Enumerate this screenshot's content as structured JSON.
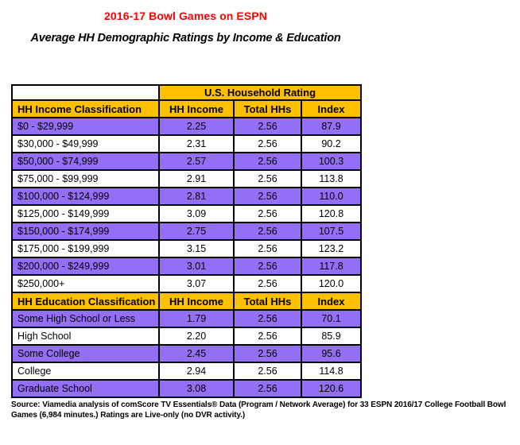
{
  "colors": {
    "title_red": "#FF0000",
    "header_gold": "#FFC000",
    "row_purple": "#946FF5",
    "row_white": "#FFFFFF",
    "border_black": "#000000"
  },
  "chart_data": {
    "type": "table",
    "title": "2016-17 Bowl Games on ESPN",
    "subtitle": "Average HH Demographic Ratings by Income & Education",
    "column_group_header": "U.S. Household Rating",
    "sections": [
      {
        "header": [
          "HH Income Classification",
          "HH Income",
          "Total HHs",
          "Index"
        ],
        "rows": [
          [
            "$0 - $29,999",
            "2.25",
            "2.56",
            "87.9"
          ],
          [
            "$30,000 - $49,999",
            "2.31",
            "2.56",
            "90.2"
          ],
          [
            "$50,000 - $74,999",
            "2.57",
            "2.56",
            "100.3"
          ],
          [
            "$75,000 - $99,999",
            "2.91",
            "2.56",
            "113.8"
          ],
          [
            "$100,000 - $124,999",
            "2.81",
            "2.56",
            "110.0"
          ],
          [
            "$125,000 - $149,999",
            "3.09",
            "2.56",
            "120.8"
          ],
          [
            "$150,000 - $174,999",
            "2.75",
            "2.56",
            "107.5"
          ],
          [
            "$175,000 - $199,999",
            "3.15",
            "2.56",
            "123.2"
          ],
          [
            "$200,000 - $249,999",
            "3.01",
            "2.56",
            "117.8"
          ],
          [
            "$250,000+",
            "3.07",
            "2.56",
            "120.0"
          ]
        ]
      },
      {
        "header": [
          "HH Education Classification",
          "HH Income",
          "Total HHs",
          "Index"
        ],
        "rows": [
          [
            "Some High School or Less",
            "1.79",
            "2.56",
            "70.1"
          ],
          [
            "High School",
            "2.20",
            "2.56",
            "85.9"
          ],
          [
            "Some College",
            "2.45",
            "2.56",
            "95.6"
          ],
          [
            "College",
            "2.94",
            "2.56",
            "114.8"
          ],
          [
            "Graduate School",
            "3.08",
            "2.56",
            "120.6"
          ]
        ]
      }
    ],
    "source": "Source: Viamedia analysis of comScore TV Essentials® Data (Program / Network Average) for 33 ESPN 2016/17 College Football Bowl Games (6,984 minutes.) Ratings are Live-only (no DVR activity.)"
  }
}
